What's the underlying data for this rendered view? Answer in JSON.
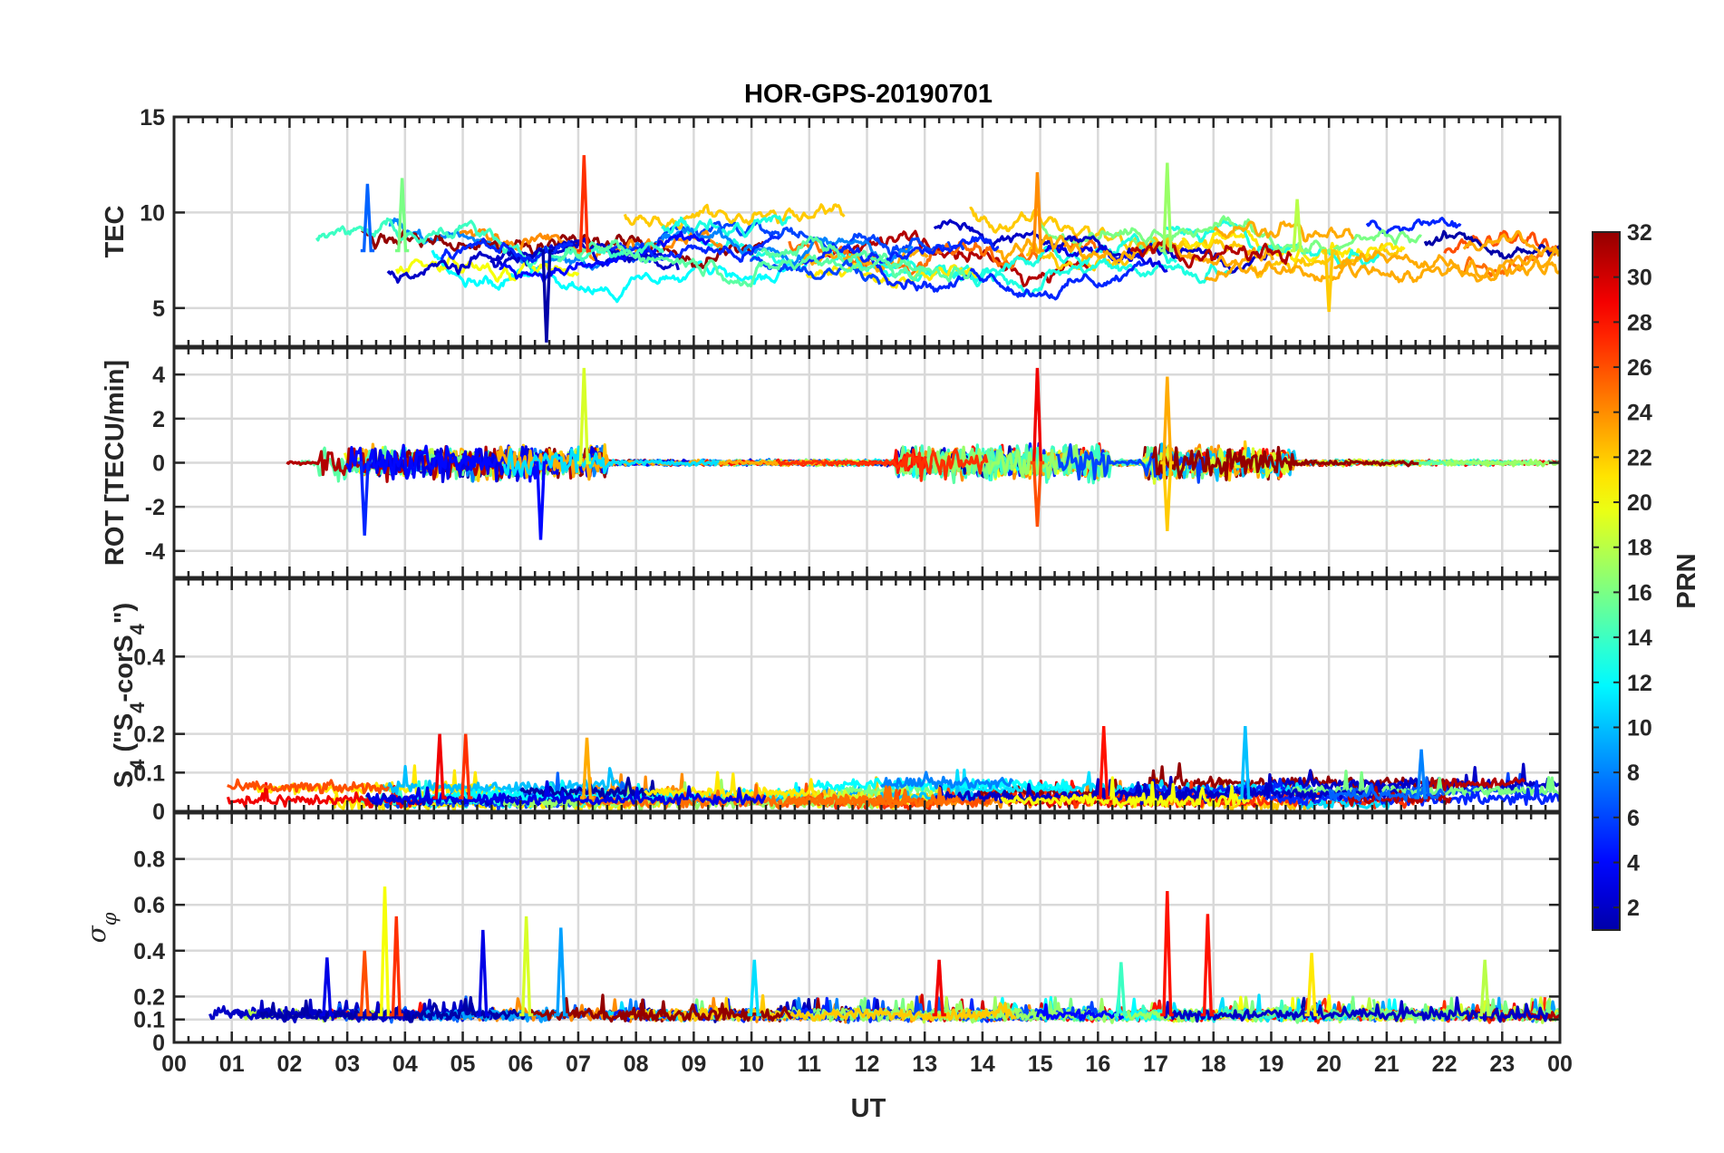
{
  "chart_data": {
    "type": "line",
    "title": "HOR-GPS-20190701",
    "xlabel": "UT",
    "x_ticks": [
      "00",
      "01",
      "02",
      "03",
      "04",
      "05",
      "06",
      "07",
      "08",
      "09",
      "10",
      "11",
      "12",
      "13",
      "14",
      "15",
      "16",
      "17",
      "18",
      "19",
      "20",
      "21",
      "22",
      "23",
      "00"
    ],
    "grid": true,
    "panels": [
      {
        "id": "tec",
        "ylabel": "TEC",
        "ylim": [
          3,
          15
        ],
        "yticks": [
          5,
          10,
          15
        ],
        "yticks_labels": [
          "5",
          "10",
          "15"
        ],
        "typical_level": 8,
        "spikes": [
          {
            "time_h": 3.35,
            "value": 11.5
          },
          {
            "time_h": 3.95,
            "value": 11.8
          },
          {
            "time_h": 6.45,
            "value": 3.2
          },
          {
            "time_h": 7.1,
            "value": 13.0
          },
          {
            "time_h": 14.95,
            "value": 12.1
          },
          {
            "time_h": 17.2,
            "value": 12.6
          },
          {
            "time_h": 19.45,
            "value": 10.7
          },
          {
            "time_h": 20.0,
            "value": 4.8
          }
        ]
      },
      {
        "id": "rot",
        "ylabel": "ROT [TECU/min]",
        "ylim": [
          -5.2,
          5.2
        ],
        "yticks": [
          -4,
          -2,
          0,
          2,
          4
        ],
        "yticks_labels": [
          "-4",
          "-2",
          "0",
          "2",
          "4"
        ],
        "active_intervals_h": [
          [
            2.5,
            7.5
          ],
          [
            12.5,
            16.2
          ],
          [
            16.8,
            19.4
          ]
        ],
        "extremes": [
          {
            "time_h": 3.3,
            "value": -3.3
          },
          {
            "time_h": 6.35,
            "value": -3.5
          },
          {
            "time_h": 7.1,
            "value": 4.3
          },
          {
            "time_h": 14.95,
            "value": 4.3
          },
          {
            "time_h": 14.95,
            "value": -2.9
          },
          {
            "time_h": 17.2,
            "value": 3.9
          },
          {
            "time_h": 17.2,
            "value": -3.1
          }
        ]
      },
      {
        "id": "s4",
        "ylabel": "S4 (\"S4-corS4\")",
        "ylabel_base": "S",
        "ylabel_sub": "4",
        "ylabel_mid": " (\"S",
        "ylabel_mid2": "-corS",
        "ylabel_end": "\")",
        "ylim": [
          0,
          0.6
        ],
        "yticks": [
          0,
          0.1,
          0.2,
          0.4
        ],
        "yticks_labels": [
          "0",
          "0.1",
          "0.2",
          "0.4"
        ],
        "baseline": 0.035,
        "spikes": [
          {
            "time_h": 4.6,
            "value": 0.2
          },
          {
            "time_h": 5.05,
            "value": 0.2
          },
          {
            "time_h": 7.15,
            "value": 0.19
          },
          {
            "time_h": 16.1,
            "value": 0.22
          },
          {
            "time_h": 18.55,
            "value": 0.22
          },
          {
            "time_h": 21.6,
            "value": 0.16
          }
        ]
      },
      {
        "id": "sigma_phi",
        "ylabel": "σφ",
        "ylabel_symbol": "σ",
        "ylabel_sub": "φ",
        "ylim": [
          0,
          1.0
        ],
        "yticks": [
          0,
          0.1,
          0.2,
          0.4,
          0.6,
          0.8
        ],
        "yticks_labels": [
          "0",
          "0.1",
          "0.2",
          "0.4",
          "0.6",
          "0.8"
        ],
        "baseline": 0.12,
        "spikes": [
          {
            "time_h": 2.65,
            "value": 0.37
          },
          {
            "time_h": 3.3,
            "value": 0.4
          },
          {
            "time_h": 3.65,
            "value": 0.68
          },
          {
            "time_h": 3.85,
            "value": 0.55
          },
          {
            "time_h": 5.35,
            "value": 0.49
          },
          {
            "time_h": 6.1,
            "value": 0.55
          },
          {
            "time_h": 6.7,
            "value": 0.5
          },
          {
            "time_h": 10.05,
            "value": 0.36
          },
          {
            "time_h": 13.25,
            "value": 0.36
          },
          {
            "time_h": 16.4,
            "value": 0.35
          },
          {
            "time_h": 17.2,
            "value": 0.66
          },
          {
            "time_h": 17.9,
            "value": 0.56
          },
          {
            "time_h": 19.7,
            "value": 0.39
          },
          {
            "time_h": 22.7,
            "value": 0.36
          }
        ]
      }
    ],
    "colorbar": {
      "label": "PRN",
      "colormap": "jet",
      "range": [
        1,
        32
      ],
      "ticks": [
        2,
        4,
        6,
        8,
        10,
        12,
        14,
        16,
        18,
        20,
        22,
        24,
        26,
        28,
        30,
        32
      ],
      "ticks_labels": [
        "2",
        "4",
        "6",
        "8",
        "10",
        "12",
        "14",
        "16",
        "18",
        "20",
        "22",
        "24",
        "26",
        "28",
        "30",
        "32"
      ]
    }
  }
}
